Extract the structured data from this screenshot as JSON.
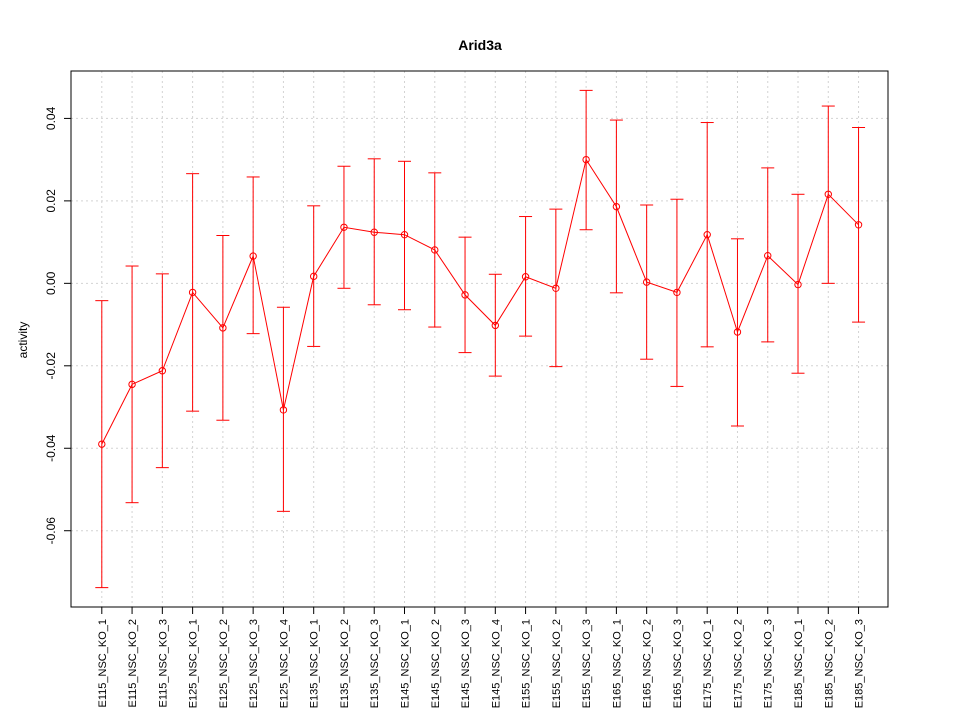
{
  "chart_data": {
    "type": "line",
    "title": "Arid3a",
    "xlabel": "",
    "ylabel": "activity",
    "categories": [
      "E115_NSC_KO_1",
      "E115_NSC_KO_2",
      "E115_NSC_KO_3",
      "E125_NSC_KO_1",
      "E125_NSC_KO_2",
      "E125_NSC_KO_3",
      "E125_NSC_KO_4",
      "E135_NSC_KO_1",
      "E135_NSC_KO_2",
      "E135_NSC_KO_3",
      "E145_NSC_KO_1",
      "E145_NSC_KO_2",
      "E145_NSC_KO_3",
      "E145_NSC_KO_4",
      "E155_NSC_KO_1",
      "E155_NSC_KO_2",
      "E155_NSC_KO_3",
      "E165_NSC_KO_1",
      "E165_NSC_KO_2",
      "E165_NSC_KO_3",
      "E175_NSC_KO_1",
      "E175_NSC_KO_2",
      "E175_NSC_KO_3",
      "E185_NSC_KO_1",
      "E185_NSC_KO_2",
      "E185_NSC_KO_3"
    ],
    "series": [
      {
        "values": [
          -0.039,
          -0.0245,
          -0.0212,
          -0.0022,
          -0.0108,
          0.0066,
          -0.0307,
          0.0017,
          0.0136,
          0.0124,
          0.0118,
          0.0081,
          -0.0028,
          -0.0102,
          0.0016,
          -0.0012,
          0.03,
          0.0186,
          0.0003,
          -0.0022,
          0.0118,
          -0.0118,
          0.0067,
          -0.0003,
          0.0216,
          0.0142
        ],
        "upper": [
          -0.0042,
          0.0042,
          0.0023,
          0.0266,
          0.0116,
          0.0258,
          -0.0058,
          0.0188,
          0.0284,
          0.0302,
          0.0296,
          0.0268,
          0.0112,
          0.0022,
          0.0162,
          0.018,
          0.0468,
          0.0396,
          0.019,
          0.0204,
          0.039,
          0.0108,
          0.028,
          0.0216,
          0.043,
          0.0378
        ],
        "lower": [
          -0.0738,
          -0.0532,
          -0.0447,
          -0.031,
          -0.0332,
          -0.0122,
          -0.0553,
          -0.0153,
          -0.0012,
          -0.0052,
          -0.0064,
          -0.0106,
          -0.0168,
          -0.0225,
          -0.0128,
          -0.0202,
          0.013,
          -0.0023,
          -0.0184,
          -0.025,
          -0.0154,
          -0.0346,
          -0.0142,
          -0.0218,
          0.0,
          -0.0094
        ]
      }
    ],
    "yticks": [
      -0.06,
      -0.04,
      -0.02,
      0.0,
      0.02,
      0.04
    ],
    "ytick_labels": [
      "-0.06",
      "-0.04",
      "-0.02",
      "0.00",
      "0.02",
      "0.04"
    ],
    "ylim": [
      -0.0785,
      0.0515
    ],
    "grid": true,
    "color": "#ff0000",
    "grid_color": "#d3d3d3"
  }
}
